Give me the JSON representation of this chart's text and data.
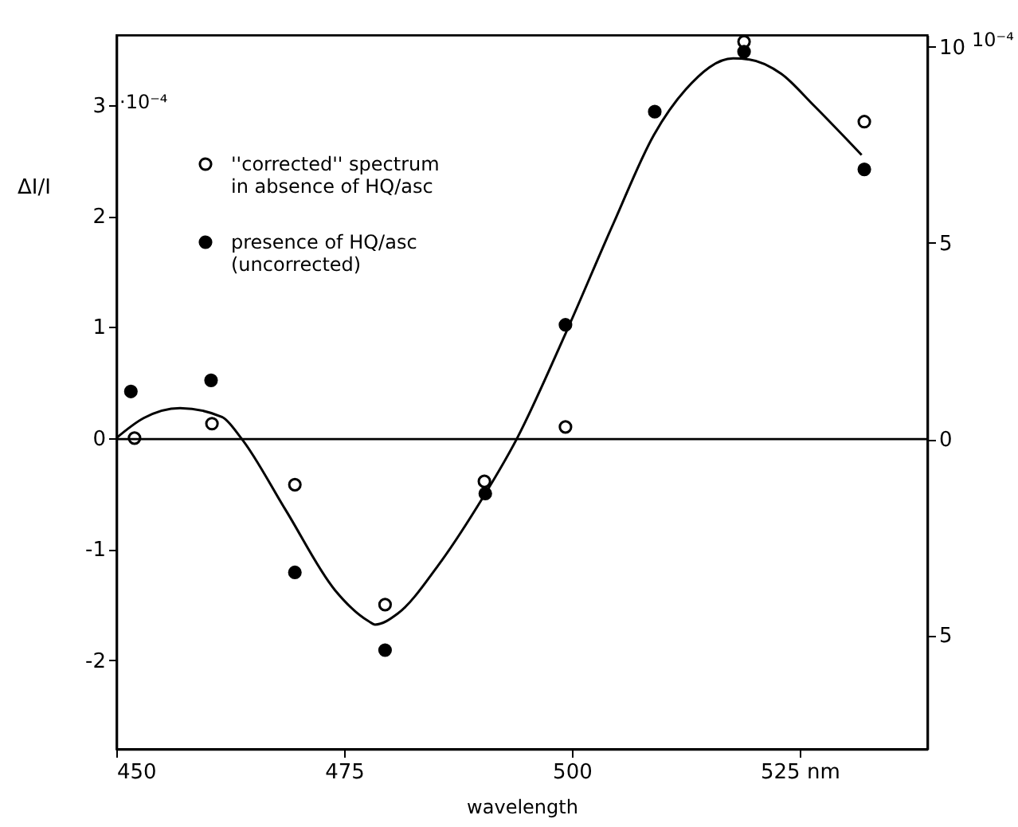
{
  "chart_data": {
    "type": "scatter",
    "xlabel": "wavelength",
    "ylabel": "ΔI/I",
    "xlim": [
      450,
      539
    ],
    "xticks": [
      450,
      475,
      500,
      {
        "value": 525,
        "label": "525 nm"
      }
    ],
    "ylim": [
      -2.8,
      3.63
    ],
    "yticks": [
      -2,
      -1,
      0,
      1,
      2,
      3
    ],
    "y2lim": [
      -7.9,
      10.3
    ],
    "y2ticks": [
      {
        "value": -5,
        "label": "5"
      },
      0,
      5,
      10
    ],
    "annotations": [
      "·10⁻⁴",
      "10⁻⁴"
    ],
    "grid": false,
    "legend": "top left",
    "marker": "circle",
    "ref_lines": [
      {
        "axis": "y2",
        "value": 0,
        "color": "#000000"
      }
    ],
    "series": [
      {
        "type": "line",
        "color": "#000000",
        "marker": "none",
        "x": [
          450,
          453,
          457,
          461.6,
          463.7,
          468.6,
          474,
          477.7,
          478.4,
          480.9,
          485.3,
          489.6,
          494,
          499.3,
          504.6,
          509,
          512.5,
          517.7,
          519.5,
          523,
          526.5,
          531.8
        ],
        "values": [
          0,
          0.18,
          0.27,
          0.19,
          0,
          -0.65,
          -1.37,
          -1.65,
          -1.68,
          -1.58,
          -1.15,
          -0.62,
          0,
          0.94,
          1.94,
          2.73,
          3.14,
          3.42,
          3.41,
          3.28,
          3.0,
          2.55
        ]
      },
      {
        "name": "''corrected'' spectrum in absence of HQ/asc",
        "color": "#ffffff",
        "x": [
          452,
          460.5,
          469.6,
          479.5,
          490.4,
          499.3,
          518.9,
          532.1
        ],
        "values": [
          0,
          0.13,
          -0.42,
          -1.5,
          -0.39,
          0.1,
          3.57,
          2.85
        ]
      },
      {
        "name": "presence of HQ/asc (uncorrected)",
        "color": "#000000",
        "x": [
          451.6,
          460.4,
          469.6,
          479.5,
          490.5,
          499.3,
          509.1,
          518.9,
          532.1
        ],
        "values": [
          0.42,
          0.52,
          -1.21,
          -1.91,
          -0.5,
          1.02,
          2.94,
          3.48,
          2.42
        ]
      }
    ]
  }
}
